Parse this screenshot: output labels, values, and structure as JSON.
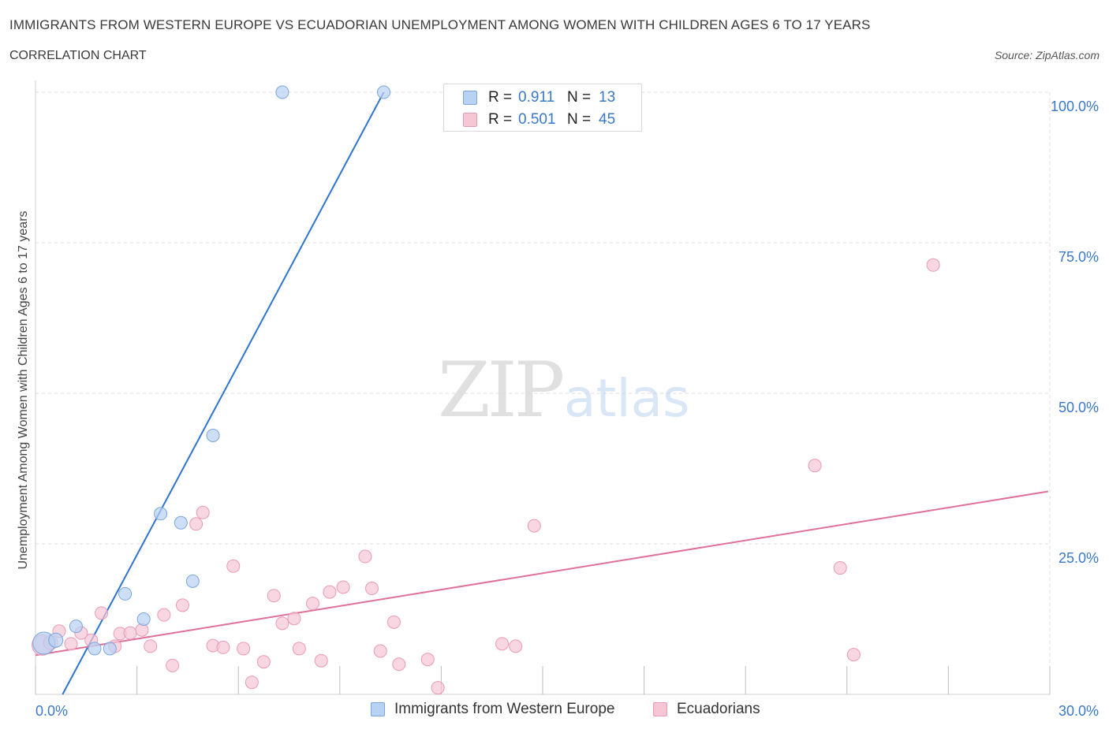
{
  "header": {
    "title": "IMMIGRANTS FROM WESTERN EUROPE VS ECUADORIAN UNEMPLOYMENT AMONG WOMEN WITH CHILDREN AGES 6 TO 17 YEARS",
    "subtitle": "CORRELATION CHART",
    "source": "Source: ZipAtlas.com"
  },
  "watermark": {
    "zip": "ZIP",
    "atlas": "atlas"
  },
  "colors": {
    "blue_fill": "#b8d2f4",
    "blue_stroke": "#7aa6dc",
    "blue_line": "#2e74cf",
    "pink_fill": "#f7c6d5",
    "pink_stroke": "#e99ab3",
    "pink_line": "#e0709a",
    "axis_label": "#3a78c9",
    "grid": "#dddddd"
  },
  "legend": {
    "r_label": "R =",
    "n_label": "N =",
    "series": [
      {
        "r": "0.911",
        "n": "13"
      },
      {
        "r": "0.501",
        "n": "45"
      }
    ]
  },
  "chart_data": {
    "type": "scatter",
    "title": "IMMIGRANTS FROM WESTERN EUROPE VS ECUADORIAN UNEMPLOYMENT AMONG WOMEN WITH CHILDREN AGES 6 TO 17 YEARS",
    "xlabel": "",
    "ylabel": "Unemployment Among Women with Children Ages 6 to 17 years",
    "xlim": [
      0,
      30
    ],
    "ylim": [
      0,
      100
    ],
    "x_tick_labels": [
      "0.0%",
      "30.0%"
    ],
    "y_ticks": [
      25,
      50,
      75,
      100
    ],
    "y_tick_labels": [
      "25.0%",
      "50.0%",
      "75.0%",
      "100.0%"
    ],
    "grid": true,
    "series": [
      {
        "name": "Immigrants from Western Europe",
        "color": "#b8d2f4",
        "points": [
          {
            "x": 0.25,
            "y": 8.5,
            "size": 14
          },
          {
            "x": 0.6,
            "y": 9.0,
            "size": 9
          },
          {
            "x": 1.2,
            "y": 11.3,
            "size": 8
          },
          {
            "x": 1.75,
            "y": 7.6,
            "size": 8
          },
          {
            "x": 2.2,
            "y": 7.6,
            "size": 8
          },
          {
            "x": 2.65,
            "y": 16.7,
            "size": 8
          },
          {
            "x": 3.2,
            "y": 12.5,
            "size": 8
          },
          {
            "x": 3.7,
            "y": 30.0,
            "size": 8
          },
          {
            "x": 4.3,
            "y": 28.5,
            "size": 8
          },
          {
            "x": 4.65,
            "y": 18.8,
            "size": 8
          },
          {
            "x": 5.25,
            "y": 43.0,
            "size": 8
          },
          {
            "x": 7.3,
            "y": 100.0,
            "size": 8
          },
          {
            "x": 10.3,
            "y": 100.0,
            "size": 8
          }
        ],
        "trend": {
          "x1": 0.8,
          "y1": 0.0,
          "x2": 10.3,
          "y2": 100.0
        }
      },
      {
        "name": "Ecuadorians",
        "color": "#f7c6d5",
        "points": [
          {
            "x": 0.2,
            "y": 8.2,
            "size": 13
          },
          {
            "x": 0.7,
            "y": 10.5,
            "size": 8
          },
          {
            "x": 1.05,
            "y": 8.4,
            "size": 8
          },
          {
            "x": 1.35,
            "y": 10.2,
            "size": 8
          },
          {
            "x": 1.65,
            "y": 9.0,
            "size": 8
          },
          {
            "x": 1.95,
            "y": 13.5,
            "size": 8
          },
          {
            "x": 2.35,
            "y": 8.0,
            "size": 8
          },
          {
            "x": 2.5,
            "y": 10.1,
            "size": 8
          },
          {
            "x": 2.8,
            "y": 10.2,
            "size": 8
          },
          {
            "x": 3.15,
            "y": 10.7,
            "size": 8
          },
          {
            "x": 3.4,
            "y": 8.0,
            "size": 8
          },
          {
            "x": 3.8,
            "y": 13.2,
            "size": 8
          },
          {
            "x": 4.05,
            "y": 4.8,
            "size": 8
          },
          {
            "x": 4.35,
            "y": 14.8,
            "size": 8
          },
          {
            "x": 4.75,
            "y": 28.3,
            "size": 8
          },
          {
            "x": 4.95,
            "y": 30.2,
            "size": 8
          },
          {
            "x": 5.25,
            "y": 8.1,
            "size": 8
          },
          {
            "x": 5.55,
            "y": 7.8,
            "size": 8
          },
          {
            "x": 5.85,
            "y": 21.3,
            "size": 8
          },
          {
            "x": 6.15,
            "y": 7.6,
            "size": 8
          },
          {
            "x": 6.4,
            "y": 2.0,
            "size": 8
          },
          {
            "x": 6.75,
            "y": 5.4,
            "size": 8
          },
          {
            "x": 7.05,
            "y": 16.4,
            "size": 8
          },
          {
            "x": 7.3,
            "y": 11.8,
            "size": 8
          },
          {
            "x": 7.65,
            "y": 12.6,
            "size": 8
          },
          {
            "x": 7.8,
            "y": 7.6,
            "size": 8
          },
          {
            "x": 8.2,
            "y": 15.1,
            "size": 8
          },
          {
            "x": 8.45,
            "y": 5.6,
            "size": 8
          },
          {
            "x": 8.7,
            "y": 17.0,
            "size": 8
          },
          {
            "x": 9.1,
            "y": 17.8,
            "size": 8
          },
          {
            "x": 9.75,
            "y": 22.9,
            "size": 8
          },
          {
            "x": 9.95,
            "y": 17.6,
            "size": 8
          },
          {
            "x": 10.2,
            "y": 7.2,
            "size": 8
          },
          {
            "x": 10.6,
            "y": 12.0,
            "size": 8
          },
          {
            "x": 10.75,
            "y": 5.0,
            "size": 8
          },
          {
            "x": 11.6,
            "y": 5.8,
            "size": 8
          },
          {
            "x": 11.9,
            "y": 1.1,
            "size": 8
          },
          {
            "x": 13.8,
            "y": 8.4,
            "size": 8
          },
          {
            "x": 14.2,
            "y": 8.0,
            "size": 8
          },
          {
            "x": 14.75,
            "y": 28.0,
            "size": 8
          },
          {
            "x": 23.05,
            "y": 38.0,
            "size": 8
          },
          {
            "x": 23.8,
            "y": 21.0,
            "size": 8
          },
          {
            "x": 24.2,
            "y": 6.6,
            "size": 8
          },
          {
            "x": 26.55,
            "y": 71.3,
            "size": 8
          },
          {
            "x": 0.45,
            "y": 8.6,
            "size": 9
          }
        ],
        "trend": {
          "x1": 0.0,
          "y1": 6.5,
          "x2": 29.95,
          "y2": 33.7
        }
      }
    ]
  }
}
